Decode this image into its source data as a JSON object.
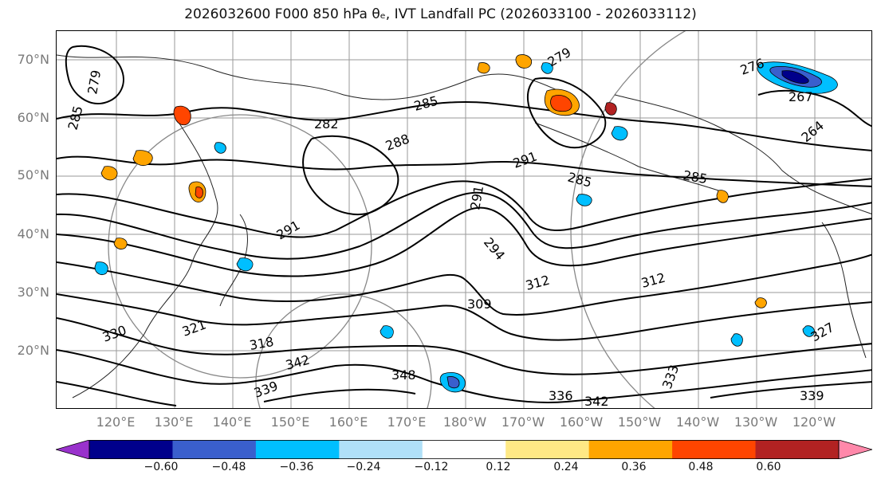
{
  "title": "2026032600 F000 850 hPa θₑ, IVT Landfall PC (2026033100 - 2026033112)",
  "lat_labels": [
    "70°N",
    "60°N",
    "50°N",
    "40°N",
    "30°N",
    "20°N"
  ],
  "lon_labels": [
    "120°E",
    "130°E",
    "140°E",
    "150°E",
    "160°E",
    "170°E",
    "180°W",
    "170°W",
    "160°W",
    "150°W",
    "140°W",
    "130°W",
    "120°W"
  ],
  "contour_labels": [
    "279",
    "285",
    "282",
    "285",
    "288",
    "291",
    "291",
    "285",
    "285",
    "264",
    "267",
    "276",
    "279",
    "294",
    "291",
    "309",
    "312",
    "318",
    "321",
    "312",
    "339",
    "336",
    "342",
    "339",
    "342",
    "330",
    "327",
    "333",
    "348"
  ],
  "colorbar": {
    "tick_labels": [
      "−0.60",
      "−0.48",
      "−0.36",
      "−0.24",
      "−0.12",
      "0.12",
      "0.24",
      "0.36",
      "0.48",
      "0.60"
    ],
    "colors": [
      "#9932cc",
      "#00008b",
      "#3a5fcd",
      "#00bfff",
      "#b0e0f8",
      "#ffffff",
      "#ffe985",
      "#ffa500",
      "#ff4500",
      "#b22222",
      "#ff88aa"
    ]
  },
  "chart_data": {
    "type": "map",
    "title": "2026032600 F000 850 hPa θₑ, IVT Landfall PC (2026033100 - 2026033112)",
    "lat_ticks": [
      70,
      60,
      50,
      40,
      30,
      20
    ],
    "lon_ticks": [
      "120°E",
      "130°E",
      "140°E",
      "150°E",
      "160°E",
      "170°E",
      "180°W",
      "170°W",
      "160°W",
      "150°W",
      "140°W",
      "130°W",
      "120°W"
    ],
    "colorbar_levels": [
      -0.6,
      -0.48,
      -0.36,
      -0.24,
      -0.12,
      0.12,
      0.24,
      0.36,
      0.48,
      0.6
    ],
    "colorbar_extend": "both"
  }
}
